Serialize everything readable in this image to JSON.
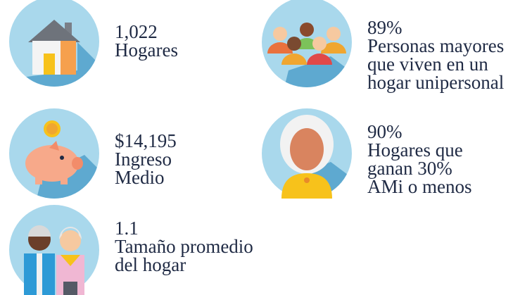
{
  "stats": [
    {
      "value": "1,022",
      "label_lines": [
        "Hogares"
      ]
    },
    {
      "value": "89%",
      "label_lines": [
        "Personas mayores",
        "que viven en un",
        "hogar unipersonal"
      ]
    },
    {
      "value": "$14,195",
      "label_lines": [
        "Ingreso",
        "Medio"
      ]
    },
    {
      "value": "90%",
      "label_lines": [
        "Hogares que",
        "ganan 30%",
        "AMi o menos"
      ]
    },
    {
      "value": "1.1",
      "label_lines": [
        "Tamaño promedio",
        "del hogar"
      ]
    }
  ]
}
